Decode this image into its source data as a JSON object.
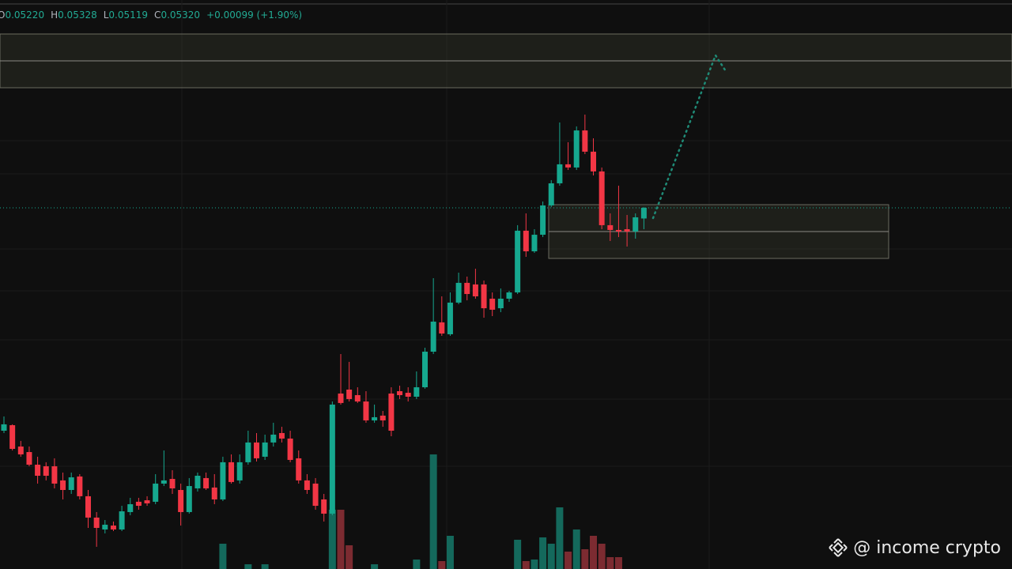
{
  "header": {
    "labels": [
      "O",
      "H",
      "L",
      "C"
    ],
    "values": [
      0.0522,
      0.05328,
      0.05119,
      0.0532
    ],
    "value_labels": [
      "0.05220",
      "0.05328",
      "0.05119",
      "0.05320"
    ],
    "change": "+0.00099 (+1.90%)"
  },
  "watermark": "@ income crypto",
  "chart_data": {
    "type": "candlestick",
    "up_color": "#16a88f",
    "down_color": "#f23645",
    "ylim": [
      0.0192,
      0.07277
    ],
    "open": [
      0.03222,
      0.03274,
      0.03073,
      0.03021,
      0.02902,
      0.02887,
      0.02887,
      0.02754,
      0.02664,
      0.02791,
      0.02605,
      0.02404,
      0.02292,
      0.02329,
      0.02292,
      0.02456,
      0.02553,
      0.02567,
      0.02553,
      0.02724,
      0.02768,
      0.02664,
      0.02456,
      0.02679,
      0.02776,
      0.02687,
      0.02575,
      0.02925,
      0.02754,
      0.02925,
      0.03111,
      0.02977,
      0.03111,
      0.032,
      0.03148,
      0.02962,
      0.02754,
      0.02724,
      0.02575,
      0.02441,
      0.03572,
      0.03609,
      0.03557,
      0.03497,
      0.03319,
      0.03364,
      0.03572,
      0.03594,
      0.03579,
      0.03542,
      0.03631,
      0.03966,
      0.04242,
      0.0413,
      0.04428,
      0.04614,
      0.04599,
      0.04599,
      0.04465,
      0.04375,
      0.04465,
      0.04524,
      0.05105,
      0.04911,
      0.05067,
      0.05343,
      0.05551,
      0.0573,
      0.057,
      0.06049,
      0.05849,
      0.05663,
      0.05157,
      0.05112,
      0.05119,
      0.05097,
      0.0522
    ],
    "high": [
      0.03356,
      0.03282,
      0.03126,
      0.03073,
      0.02977,
      0.02925,
      0.02962,
      0.02828,
      0.02828,
      0.02813,
      0.02664,
      0.02456,
      0.02381,
      0.02367,
      0.02515,
      0.0259,
      0.0259,
      0.02605,
      0.02813,
      0.03036,
      0.0285,
      0.02724,
      0.02776,
      0.02828,
      0.02828,
      0.02813,
      0.02977,
      0.02999,
      0.02999,
      0.03222,
      0.032,
      0.03185,
      0.03297,
      0.03259,
      0.03222,
      0.03036,
      0.02813,
      0.02776,
      0.02627,
      0.03497,
      0.03944,
      0.0387,
      0.03631,
      0.03594,
      0.03468,
      0.03408,
      0.03631,
      0.03646,
      0.03631,
      0.0378,
      0.04003,
      0.04658,
      0.04487,
      0.04524,
      0.0471,
      0.04673,
      0.04747,
      0.04636,
      0.04524,
      0.04561,
      0.04539,
      0.05157,
      0.05268,
      0.05119,
      0.0538,
      0.05581,
      0.06124,
      0.05938,
      0.06087,
      0.06198,
      0.05975,
      0.057,
      0.05268,
      0.05529,
      0.05253,
      0.05268,
      0.05328
    ],
    "low": [
      0.032,
      0.03036,
      0.02977,
      0.02887,
      0.02724,
      0.02754,
      0.02679,
      0.02575,
      0.02627,
      0.02575,
      0.02307,
      0.02129,
      0.02255,
      0.02277,
      0.02277,
      0.02426,
      0.02478,
      0.02515,
      0.0253,
      0.02701,
      0.02627,
      0.02329,
      0.02441,
      0.02649,
      0.02664,
      0.0253,
      0.0256,
      0.02724,
      0.02724,
      0.02902,
      0.02932,
      0.02947,
      0.03073,
      0.03111,
      0.02925,
      0.02724,
      0.02627,
      0.02478,
      0.02367,
      0.02426,
      0.03468,
      0.03497,
      0.03483,
      0.03297,
      0.03297,
      0.03259,
      0.0317,
      0.0352,
      0.03497,
      0.0352,
      0.03617,
      0.03944,
      0.04115,
      0.04115,
      0.04413,
      0.0445,
      0.04465,
      0.04286,
      0.04301,
      0.04338,
      0.04435,
      0.04509,
      0.04859,
      0.04896,
      0.05045,
      0.05328,
      0.05529,
      0.05677,
      0.05677,
      0.05826,
      0.05625,
      0.05119,
      0.05008,
      0.05045,
      0.04956,
      0.0503,
      0.05119
    ],
    "close": [
      0.03282,
      0.03051,
      0.02999,
      0.02902,
      0.02798,
      0.02798,
      0.02724,
      0.02664,
      0.02783,
      0.02605,
      0.02404,
      0.02307,
      0.02337,
      0.02292,
      0.02463,
      0.0253,
      0.02515,
      0.02538,
      0.02724,
      0.02754,
      0.02679,
      0.02456,
      0.02701,
      0.02798,
      0.02679,
      0.02575,
      0.02925,
      0.02739,
      0.02925,
      0.03111,
      0.02962,
      0.03111,
      0.03185,
      0.03148,
      0.02947,
      0.02754,
      0.02664,
      0.02515,
      0.02441,
      0.03468,
      0.03483,
      0.0352,
      0.03497,
      0.03319,
      0.03349,
      0.03319,
      0.03222,
      0.03557,
      0.03542,
      0.03631,
      0.03966,
      0.04249,
      0.04137,
      0.04428,
      0.04614,
      0.04509,
      0.04487,
      0.04375,
      0.04361,
      0.04465,
      0.04524,
      0.05105,
      0.04911,
      0.05067,
      0.05343,
      0.05551,
      0.0573,
      0.057,
      0.06049,
      0.05849,
      0.05663,
      0.05157,
      0.05112,
      0.05097,
      0.05097,
      0.05231,
      0.0532
    ],
    "volume": {
      "up_color": "#14695c",
      "down_color": "#7c2b31",
      "ylim": [
        0,
        150
      ],
      "values": [
        null,
        null,
        null,
        null,
        null,
        null,
        null,
        null,
        null,
        null,
        null,
        null,
        null,
        null,
        null,
        null,
        null,
        null,
        null,
        null,
        null,
        null,
        null,
        null,
        null,
        null,
        32,
        null,
        null,
        6,
        null,
        6,
        null,
        null,
        null,
        null,
        null,
        null,
        null,
        75,
        75,
        30,
        null,
        null,
        6,
        null,
        null,
        null,
        null,
        12,
        null,
        145,
        10,
        42,
        null,
        null,
        null,
        null,
        null,
        null,
        null,
        37,
        10,
        12,
        40,
        32,
        78,
        22,
        50,
        25,
        42,
        32,
        15,
        15,
        null,
        null,
        null
      ]
    },
    "zones": [
      {
        "top": 0.06957,
        "mid": 0.06704,
        "bottom": 0.06451
      },
      {
        "top": 0.0535,
        "mid": 0.05097,
        "bottom": 0.04844
      }
    ]
  }
}
